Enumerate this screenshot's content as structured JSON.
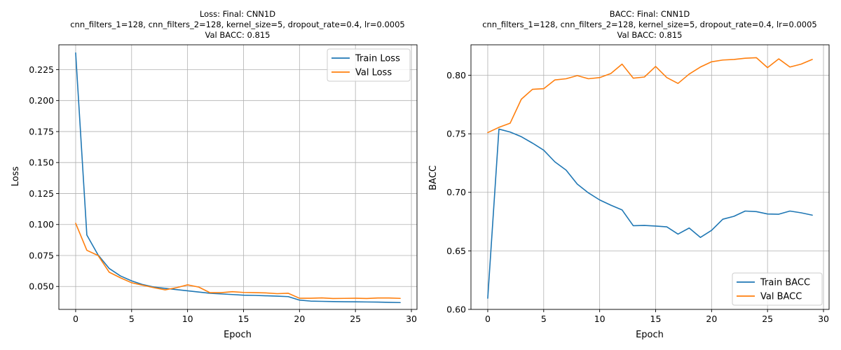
{
  "chart_data": [
    {
      "type": "line",
      "title_lines": [
        "Loss: Final: CNN1D",
        "cnn_filters_1=128, cnn_filters_2=128, kernel_size=5, dropout_rate=0.4, lr=0.0005",
        "Val BACC: 0.815"
      ],
      "xlabel": "Epoch",
      "ylabel": "Loss",
      "xlim": [
        -1.5,
        30.5
      ],
      "ylim": [
        0.0315,
        0.245
      ],
      "xticks": [
        0,
        5,
        10,
        15,
        20,
        25,
        30
      ],
      "yticks": [
        0.05,
        0.075,
        0.1,
        0.125,
        0.15,
        0.175,
        0.2,
        0.225
      ],
      "ytick_labels": [
        "0.050",
        "0.075",
        "0.100",
        "0.125",
        "0.150",
        "0.175",
        "0.200",
        "0.225"
      ],
      "grid": true,
      "legend_position": "top-right",
      "x": [
        0,
        1,
        2,
        3,
        4,
        5,
        6,
        7,
        8,
        9,
        10,
        11,
        12,
        13,
        14,
        15,
        16,
        17,
        18,
        19,
        20,
        21,
        22,
        23,
        24,
        25,
        26,
        27,
        28,
        29
      ],
      "series": [
        {
          "name": "Train Loss",
          "color": "#1f77b4",
          "values": [
            0.2385,
            0.0915,
            0.0755,
            0.0645,
            0.0585,
            0.0545,
            0.0515,
            0.0495,
            0.0485,
            0.0475,
            0.0465,
            0.0455,
            0.0445,
            0.044,
            0.0435,
            0.043,
            0.0428,
            0.0425,
            0.0422,
            0.0418,
            0.039,
            0.0382,
            0.038,
            0.0378,
            0.0377,
            0.0376,
            0.0375,
            0.0374,
            0.0372,
            0.037
          ]
        },
        {
          "name": "Val Loss",
          "color": "#ff7f0e",
          "values": [
            0.101,
            0.0792,
            0.075,
            0.0615,
            0.057,
            0.053,
            0.051,
            0.049,
            0.0473,
            0.049,
            0.0513,
            0.0495,
            0.045,
            0.045,
            0.0458,
            0.0452,
            0.045,
            0.0448,
            0.0442,
            0.0445,
            0.0405,
            0.0405,
            0.0408,
            0.0403,
            0.0404,
            0.0405,
            0.0403,
            0.0407,
            0.0407,
            0.0404
          ]
        }
      ]
    },
    {
      "type": "line",
      "title_lines": [
        "BACC: Final: CNN1D",
        "cnn_filters_1=128, cnn_filters_2=128, kernel_size=5, dropout_rate=0.4, lr=0.0005",
        "Val BACC: 0.815"
      ],
      "xlabel": "Epoch",
      "ylabel": "BACC",
      "xlim": [
        -1.5,
        30.5
      ],
      "ylim": [
        0.6,
        0.826
      ],
      "xticks": [
        0,
        5,
        10,
        15,
        20,
        25,
        30
      ],
      "yticks": [
        0.6,
        0.65,
        0.7,
        0.75,
        0.8
      ],
      "ytick_labels": [
        "0.60",
        "0.65",
        "0.70",
        "0.75",
        "0.80"
      ],
      "grid": true,
      "legend_position": "bottom-right",
      "x": [
        0,
        1,
        2,
        3,
        4,
        5,
        6,
        7,
        8,
        9,
        10,
        11,
        12,
        13,
        14,
        15,
        16,
        17,
        18,
        19,
        20,
        21,
        22,
        23,
        24,
        25,
        26,
        27,
        28,
        29
      ],
      "series": [
        {
          "name": "Train BACC",
          "color": "#1f77b4",
          "values": [
            0.6095,
            0.754,
            0.7515,
            0.7475,
            0.742,
            0.736,
            0.726,
            0.719,
            0.707,
            0.6995,
            0.6935,
            0.689,
            0.685,
            0.6715,
            0.6717,
            0.6712,
            0.6705,
            0.6643,
            0.6695,
            0.6615,
            0.6675,
            0.677,
            0.6795,
            0.684,
            0.6835,
            0.6815,
            0.6813,
            0.684,
            0.6825,
            0.6805
          ]
        },
        {
          "name": "Val BACC",
          "color": "#ff7f0e",
          "values": [
            0.751,
            0.7555,
            0.759,
            0.7795,
            0.788,
            0.7885,
            0.796,
            0.797,
            0.7997,
            0.797,
            0.798,
            0.8015,
            0.8095,
            0.7975,
            0.7985,
            0.8075,
            0.798,
            0.793,
            0.801,
            0.807,
            0.8115,
            0.813,
            0.8135,
            0.8145,
            0.815,
            0.8065,
            0.814,
            0.807,
            0.8095,
            0.8135
          ]
        }
      ]
    }
  ]
}
